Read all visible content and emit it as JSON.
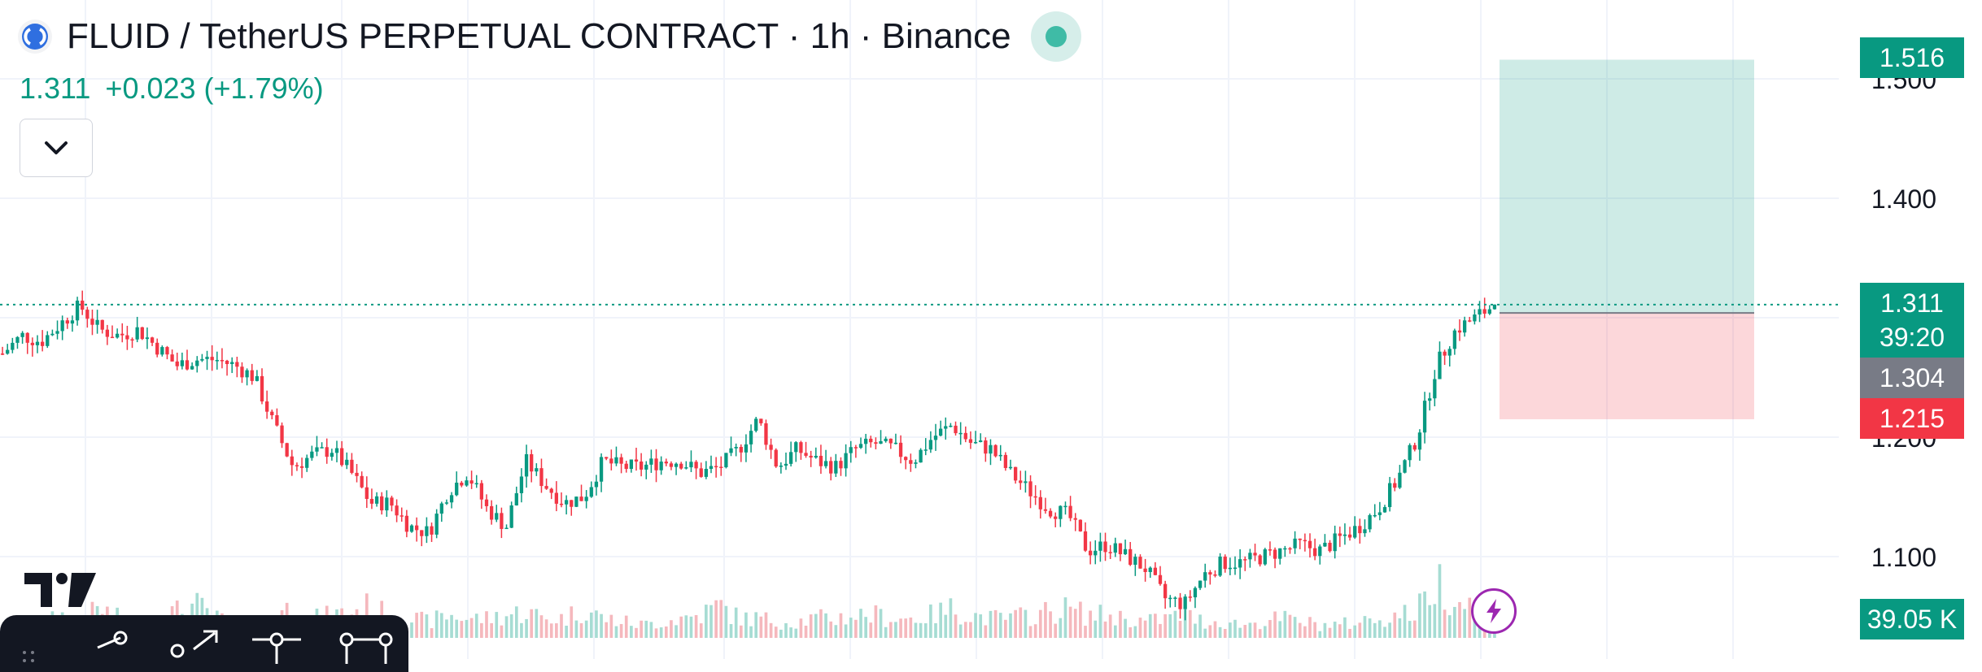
{
  "header": {
    "title": "FLUID / TetherUS PERPETUAL CONTRACT · 1h · Binance",
    "last_price": "1.311",
    "change": "+0.023 (+1.79%)"
  },
  "price_tags": {
    "target": "1.516",
    "last": "1.311",
    "countdown": "39:20",
    "entry": "1.304",
    "stop": "1.215",
    "volume": "39.05 K"
  },
  "colors": {
    "up": "#089981",
    "down": "#f23645",
    "up_vol": "#a6dcd3",
    "down_vol": "#f5b8bd",
    "entry_tag": "#787b86"
  },
  "icons": [
    "fluid-logo-icon",
    "live-status-icon",
    "chevron-down-icon",
    "tradingview-logo-icon",
    "lightning-icon",
    "trendline-tool-icon",
    "arrow-tool-icon",
    "horizontal-ray-tool-icon",
    "rectangle-tool-icon"
  ],
  "chart_data": {
    "type": "candlestick",
    "interval": "1h",
    "y_axis": {
      "ticks": [
        1.1,
        1.2,
        1.3,
        1.4,
        1.5
      ],
      "tick_labels": [
        "1.100",
        "1.200",
        "1.300",
        "1.400",
        "1.500"
      ],
      "ylim": [
        1.03,
        1.55
      ]
    },
    "grid": true,
    "last_price": 1.311,
    "price_path": [
      1.27,
      1.285,
      1.28,
      1.295,
      1.31,
      1.29,
      1.285,
      1.29,
      1.275,
      1.26,
      1.265,
      1.265,
      1.26,
      1.25,
      1.21,
      1.175,
      1.185,
      1.19,
      1.17,
      1.145,
      1.145,
      1.125,
      1.12,
      1.155,
      1.17,
      1.14,
      1.125,
      1.18,
      1.16,
      1.145,
      1.15,
      1.18,
      1.175,
      1.175,
      1.18,
      1.18,
      1.17,
      1.175,
      1.19,
      1.215,
      1.175,
      1.19,
      1.18,
      1.175,
      1.19,
      1.195,
      1.19,
      1.18,
      1.2,
      1.21,
      1.195,
      1.19,
      1.17,
      1.155,
      1.14,
      1.135,
      1.105,
      1.11,
      1.1,
      1.09,
      1.065,
      1.06,
      1.085,
      1.095,
      1.095,
      1.1,
      1.105,
      1.11,
      1.105,
      1.115,
      1.125,
      1.14,
      1.165,
      1.2,
      1.26,
      1.29,
      1.3,
      1.311
    ],
    "volume_path": [
      0.1,
      0.15,
      0.2,
      0.35,
      0.25,
      0.45,
      0.3,
      0.2,
      0.35,
      0.4,
      0.5,
      0.3,
      0.25,
      0.2,
      0.4,
      0.45,
      0.3,
      0.35,
      0.4,
      0.5,
      0.3,
      0.3,
      0.25,
      0.35,
      0.3,
      0.3,
      0.35,
      0.4,
      0.3,
      0.3,
      0.45,
      0.3,
      0.25,
      0.2,
      0.25,
      0.3,
      0.35,
      0.5,
      0.3,
      0.3,
      0.25,
      0.25,
      0.3,
      0.3,
      0.35,
      0.35,
      0.3,
      0.3,
      0.35,
      0.45,
      0.35,
      0.3,
      0.3,
      0.35,
      0.4,
      0.45,
      0.35,
      0.35,
      0.3,
      0.25,
      0.3,
      0.35,
      0.25,
      0.25,
      0.2,
      0.25,
      0.3,
      0.25,
      0.2,
      0.2,
      0.25,
      0.3,
      0.35,
      0.4,
      0.9,
      0.6,
      0.5,
      0.4
    ],
    "position": {
      "type": "long",
      "entry": 1.304,
      "target": 1.516,
      "stop": 1.215
    },
    "volume_axis_label": "39.05 K"
  }
}
